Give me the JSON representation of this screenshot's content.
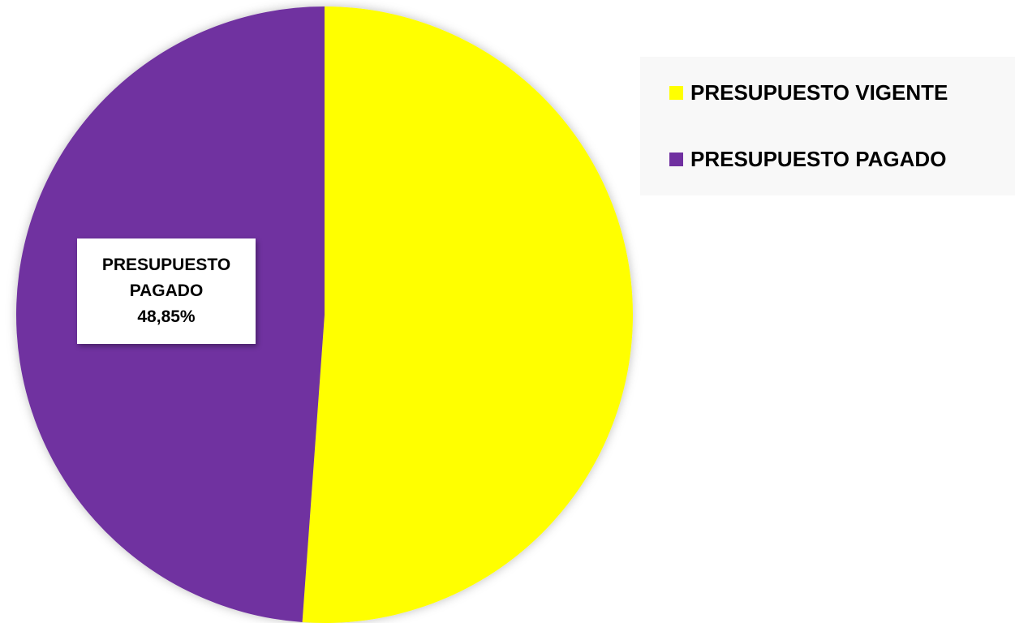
{
  "chart_data": {
    "type": "pie",
    "slices": [
      {
        "name": "PRESUPUESTO VIGENTE",
        "value": 51.15,
        "color": "#FFFF00"
      },
      {
        "name": "PRESUPUESTO PAGADO",
        "value": 48.85,
        "color": "#7030A0"
      }
    ],
    "data_labels": [
      {
        "series": "PRESUPUESTO PAGADO",
        "line1": "PRESUPUESTO",
        "line2": "PAGADO",
        "value_text": "48,85%"
      }
    ],
    "legend": {
      "placement": "top-right",
      "items": [
        {
          "label": "PRESUPUESTO VIGENTE",
          "color": "#FFFF00"
        },
        {
          "label": "PRESUPUESTO PAGADO",
          "color": "#7030A0"
        }
      ]
    }
  }
}
